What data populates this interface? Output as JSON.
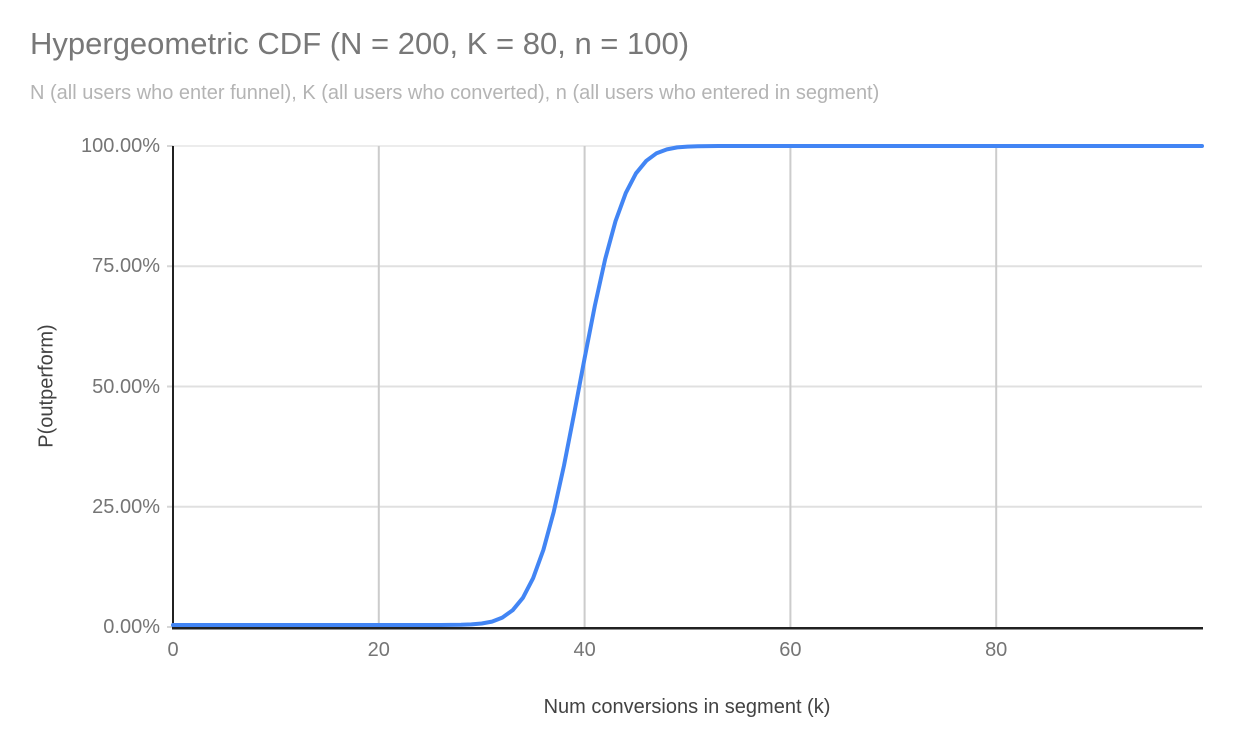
{
  "chart_data": {
    "type": "line",
    "title": "Hypergeometric CDF (N = 200, K = 80, n = 100)",
    "subtitle": "N (all users who enter funnel), K (all users who converted), n (all users who entered in segment)",
    "xlabel": "Num conversions in segment (k)",
    "ylabel": "P(outperform)",
    "params": {
      "N": 200,
      "K": 80,
      "n": 100
    },
    "xlim": [
      0,
      100
    ],
    "ylim": [
      0,
      1
    ],
    "grid": true,
    "legend": "none",
    "x_ticks": {
      "values": [
        0,
        20,
        40,
        60,
        80
      ],
      "labels": [
        "0",
        "20",
        "40",
        "60",
        "80"
      ]
    },
    "y_ticks": {
      "values": [
        0,
        0.25,
        0.5,
        0.75,
        1
      ],
      "labels": [
        "0.00%",
        "25.00%",
        "50.00%",
        "75.00%",
        "100.00%"
      ]
    },
    "series": [
      {
        "name": "P(outperform)",
        "color": "#4285f4",
        "x": [
          0,
          5,
          10,
          15,
          20,
          24,
          25,
          26,
          27,
          28,
          29,
          30,
          31,
          32,
          33,
          34,
          35,
          36,
          37,
          38,
          39,
          40,
          41,
          42,
          43,
          44,
          45,
          46,
          47,
          48,
          49,
          50,
          51,
          52,
          53,
          54,
          55,
          60,
          65,
          70,
          75,
          80,
          85,
          90,
          95,
          100
        ],
        "y": [
          0,
          0,
          0,
          0,
          0,
          1e-05,
          3e-05,
          5e-05,
          0.00016,
          0.00046,
          0.0012,
          0.0031,
          0.0072,
          0.0154,
          0.0307,
          0.0567,
          0.0977,
          0.157,
          0.236,
          0.333,
          0.443,
          0.557,
          0.667,
          0.764,
          0.843,
          0.902,
          0.943,
          0.969,
          0.985,
          0.993,
          0.997,
          0.9987,
          0.9995,
          0.9998,
          0.99995,
          0.99999,
          1,
          1,
          1,
          1,
          1,
          1,
          1,
          1,
          1,
          1
        ]
      }
    ],
    "colors": {
      "line": "#4285f4",
      "h_gridline": "#e0e0e0",
      "v_gridline": "#cccccc",
      "axis_line": "#212121",
      "tick_mark": "#d6d6d6"
    }
  }
}
